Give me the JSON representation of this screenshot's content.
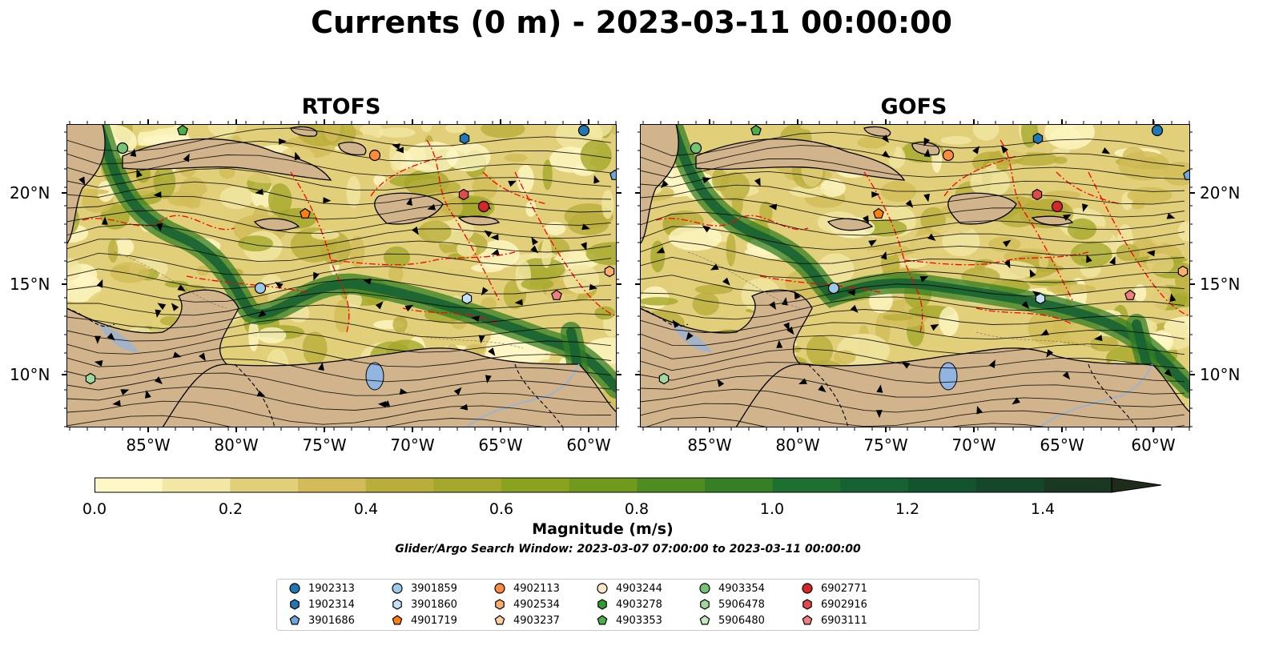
{
  "title": "Currents (0 m) - 2023-03-11 00:00:00",
  "panels": [
    {
      "title": "RTOFS"
    },
    {
      "title": "GOFS"
    }
  ],
  "x_ticks": [
    "85°W",
    "80°W",
    "75°W",
    "70°W",
    "65°W",
    "60°W"
  ],
  "y_ticks": [
    "20°N",
    "15°N",
    "10°N"
  ],
  "colorbar": {
    "label": "Magnitude (m/s)",
    "ticks": [
      "0.0",
      "0.2",
      "0.4",
      "0.6",
      "0.8",
      "1.0",
      "1.2",
      "1.4"
    ],
    "range": [
      0,
      1.5
    ],
    "colors": [
      "#fff7c6",
      "#f3e7a5",
      "#e2cf7a",
      "#d2bb58",
      "#b9ae3c",
      "#a4a72b",
      "#8ba21f",
      "#6f9a1b",
      "#4f8c21",
      "#357f24",
      "#1e7030",
      "#176232",
      "#13542e",
      "#16472b",
      "#1b3922",
      "#1e2d1a"
    ]
  },
  "search_window": "Glider/Argo Search Window: 2023-03-07 07:00:00 to 2023-03-11 00:00:00",
  "legend": [
    {
      "id": "1902313",
      "marker": "circle",
      "color": "#1f77b4"
    },
    {
      "id": "1902314",
      "marker": "hexagon",
      "color": "#1f77b4"
    },
    {
      "id": "3901686",
      "marker": "pentagon",
      "color": "#6fa6dc"
    },
    {
      "id": "3901859",
      "marker": "circle",
      "color": "#9ecae9"
    },
    {
      "id": "3901860",
      "marker": "hexagon",
      "color": "#c6e0f5"
    },
    {
      "id": "4901719",
      "marker": "pentagon",
      "color": "#ff7f0e"
    },
    {
      "id": "4902113",
      "marker": "circle",
      "color": "#fd8d3c"
    },
    {
      "id": "4902534",
      "marker": "hexagon",
      "color": "#fdae6b"
    },
    {
      "id": "4903237",
      "marker": "pentagon",
      "color": "#fdd0a2"
    },
    {
      "id": "4903244",
      "marker": "circle",
      "color": "#fee6ce"
    },
    {
      "id": "4903278",
      "marker": "hexagon",
      "color": "#2ca02c"
    },
    {
      "id": "4903353",
      "marker": "pentagon",
      "color": "#4daf4a"
    },
    {
      "id": "4903354",
      "marker": "circle",
      "color": "#74c476"
    },
    {
      "id": "5906478",
      "marker": "hexagon",
      "color": "#a1d99b"
    },
    {
      "id": "5906480",
      "marker": "pentagon",
      "color": "#c7e9c0"
    },
    {
      "id": "6902771",
      "marker": "circle",
      "color": "#d62728"
    },
    {
      "id": "6902916",
      "marker": "hexagon",
      "color": "#de4b4b"
    },
    {
      "id": "6903111",
      "marker": "pentagon",
      "color": "#f08080"
    }
  ],
  "colors": {
    "land": "#d2b48c",
    "boundary": "#ff0000",
    "lake": "#92b4e0"
  }
}
